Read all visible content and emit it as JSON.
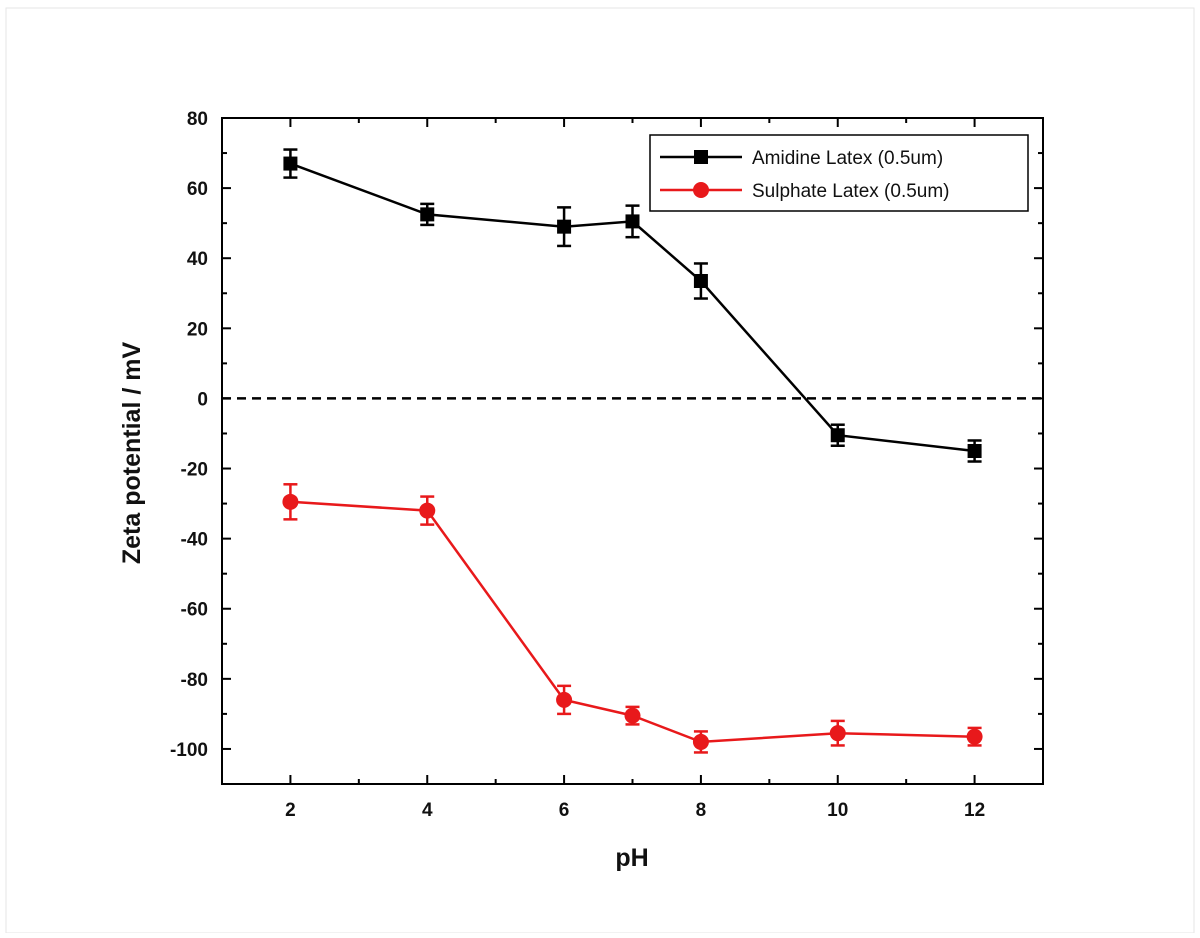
{
  "chart_data": {
    "type": "line",
    "xlabel": "pH",
    "ylabel": "Zeta potential / mV",
    "xlim": [
      1,
      13
    ],
    "ylim": [
      -110,
      80
    ],
    "xticks": [
      2,
      4,
      6,
      8,
      10,
      12
    ],
    "yticks": [
      -100,
      -80,
      -60,
      -40,
      -20,
      0,
      20,
      40,
      60,
      80
    ],
    "grid": false,
    "legend_position": "top-right",
    "reference_line": {
      "y": 0,
      "style": "dashed",
      "color": "#000000"
    },
    "series": [
      {
        "name": "Amidine Latex (0.5um)",
        "marker": "square",
        "color": "#000000",
        "x": [
          2,
          4,
          6,
          7,
          8,
          10,
          12
        ],
        "y": [
          67,
          52.5,
          49,
          50.5,
          33.5,
          -10.5,
          -15
        ],
        "error": [
          4,
          3,
          5.5,
          4.5,
          5,
          3,
          3
        ]
      },
      {
        "name": "Sulphate Latex (0.5um)",
        "marker": "circle",
        "color": "#e8191b",
        "x": [
          2,
          4,
          6,
          7,
          8,
          10,
          12
        ],
        "y": [
          -29.5,
          -32,
          -86,
          -90.5,
          -98,
          -95.5,
          -96.5
        ],
        "error": [
          5,
          4,
          4,
          2.5,
          3,
          3.5,
          2.5
        ]
      }
    ]
  }
}
